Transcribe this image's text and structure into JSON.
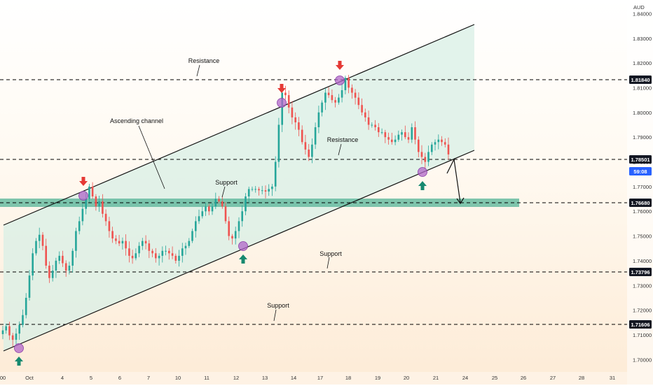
{
  "chart_data": {
    "type": "candlestick",
    "currency": "AUD",
    "ylim": [
      1.695,
      1.8455
    ],
    "y_ticks": [
      "1.84000",
      "1.83000",
      "1.82000",
      "1.81000",
      "1.80000",
      "1.79000",
      "1.78000",
      "1.77000",
      "1.76000",
      "1.75000",
      "1.74000",
      "1.73000",
      "1.72000",
      "1.71000",
      "1.70000"
    ],
    "x_ticks": [
      "00",
      "Oct",
      "4",
      "5",
      "6",
      "7",
      "10",
      "11",
      "12",
      "13",
      "14",
      "17",
      "18",
      "19",
      "20",
      "21",
      "24",
      "25",
      "26",
      "27",
      "28",
      "31"
    ],
    "price_tags": [
      {
        "label": "1.81840",
        "style": "dark"
      },
      {
        "label": "1.78501",
        "style": "dark"
      },
      {
        "label": "59:08",
        "style": "blue"
      },
      {
        "label": "1.76680",
        "style": "dark"
      },
      {
        "label": "1.73796",
        "style": "dark"
      },
      {
        "label": "1.71606",
        "style": "dark"
      }
    ],
    "horizontal_levels": [
      1.8184,
      1.78501,
      1.7668,
      1.73796,
      1.71606
    ],
    "support_zone": [
      1.7656,
      1.768
    ],
    "annotations": [
      "Resistance",
      "Ascending channel",
      "Support",
      "Resistance",
      "Support",
      "Support"
    ],
    "closes": [
      1.7118,
      1.7135,
      1.7098,
      1.708,
      1.7105,
      1.714,
      1.718,
      1.725,
      1.734,
      1.743,
      1.748,
      1.7505,
      1.746,
      1.738,
      1.733,
      1.736,
      1.74,
      1.742,
      1.739,
      1.736,
      1.738,
      1.744,
      1.752,
      1.756,
      1.761,
      1.765,
      1.77,
      1.766,
      1.762,
      1.764,
      1.759,
      1.756,
      1.752,
      1.749,
      1.748,
      1.747,
      1.748,
      1.745,
      1.742,
      1.741,
      1.743,
      1.746,
      1.748,
      1.747,
      1.744,
      1.743,
      1.741,
      1.742,
      1.744,
      1.744,
      1.743,
      1.742,
      1.74,
      1.742,
      1.745,
      1.746,
      1.748,
      1.752,
      1.756,
      1.758,
      1.76,
      1.762,
      1.76,
      1.762,
      1.765,
      1.764,
      1.762,
      1.756,
      1.75,
      1.749,
      1.752,
      1.756,
      1.76,
      1.766,
      1.769,
      1.769,
      1.769,
      1.7685,
      1.7685,
      1.768,
      1.769,
      1.77,
      1.78,
      1.795,
      1.808,
      1.807,
      1.802,
      1.798,
      1.796,
      1.793,
      1.788,
      1.785,
      1.782,
      1.787,
      1.794,
      1.8,
      1.804,
      1.808,
      1.807,
      1.805,
      1.804,
      1.806,
      1.809,
      1.814,
      1.81,
      1.808,
      1.806,
      1.803,
      1.8,
      1.798,
      1.795,
      1.795,
      1.794,
      1.792,
      1.792,
      1.79,
      1.789,
      1.788,
      1.789,
      1.791,
      1.792,
      1.79,
      1.789,
      1.794,
      1.789,
      1.784,
      1.782,
      1.78,
      1.784,
      1.787,
      1.788,
      1.789,
      1.788,
      1.787,
      1.783
    ]
  },
  "price_axis_label": "AUD",
  "annotations": {
    "resistance_top": "Resistance",
    "ascending_channel": "Ascending channel",
    "support_channel": "Support",
    "resistance_mid": "Resistance",
    "support_mid": "Support",
    "support_low": "Support"
  },
  "colors": {
    "bull": "#26a69a",
    "bear": "#ef5350",
    "channel_fill": "#d8efe6",
    "zone": "#5fb89c",
    "down_arrow": "#e53935",
    "up_arrow": "#16896f",
    "marker": "#b066c8",
    "tag_dark": "#131722",
    "tag_blue": "#2962ff"
  }
}
